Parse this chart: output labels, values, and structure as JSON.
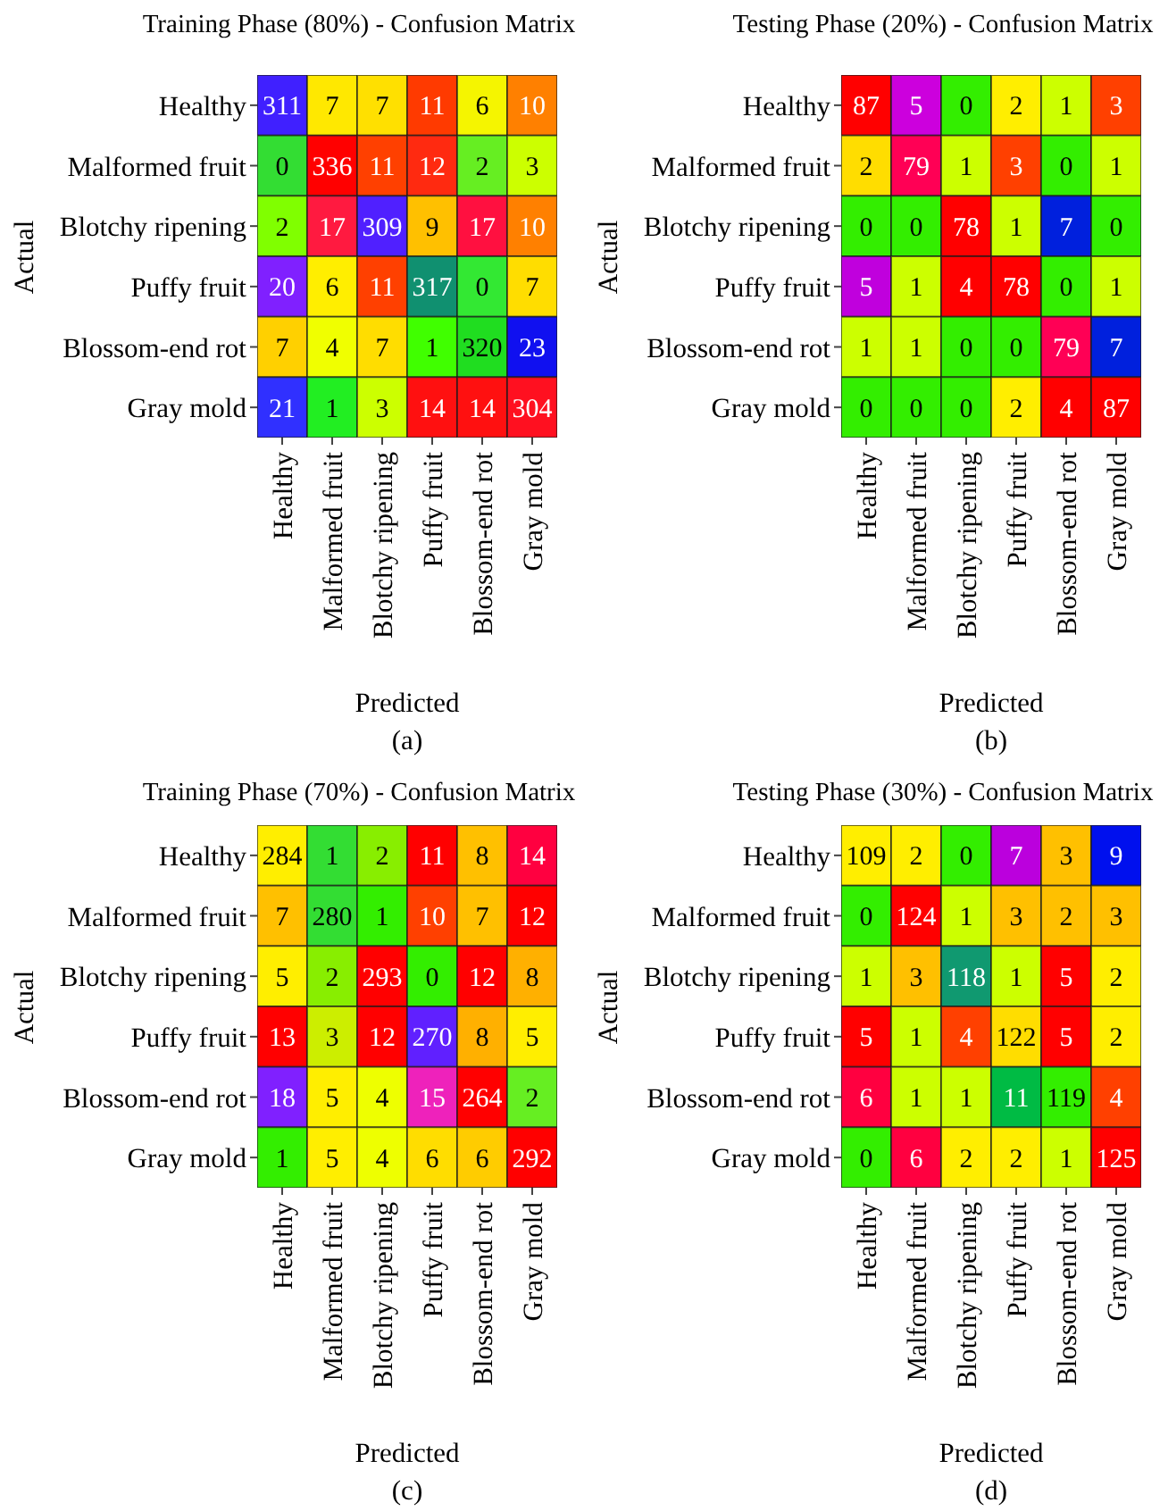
{
  "chart_data": [
    {
      "type": "heatmap",
      "title": "Training Phase (80%) - Confusion Matrix",
      "xlabel": "Predicted",
      "ylabel": "Actual",
      "annotations": [
        "(a)"
      ],
      "data_labels": true,
      "categories": [
        "Healthy",
        "Malformed fruit",
        "Blotchy ripening",
        "Puffy fruit",
        "Blossom-end rot",
        "Gray mold"
      ],
      "y_categories": [
        "Healthy",
        "Malformed fruit",
        "Blotchy ripening",
        "Puffy fruit",
        "Blossom-end rot",
        "Gray mold"
      ],
      "cells": [
        [
          311,
          7,
          7,
          11,
          6,
          10
        ],
        [
          0,
          336,
          11,
          12,
          2,
          3
        ],
        [
          2,
          17,
          309,
          9,
          17,
          10
        ],
        [
          20,
          6,
          11,
          317,
          0,
          7
        ],
        [
          7,
          4,
          7,
          1,
          320,
          23
        ],
        [
          21,
          1,
          3,
          14,
          14,
          304
        ]
      ],
      "colors": [
        [
          "#4020ff",
          "#ffe800",
          "#ffe000",
          "#ff3a00",
          "#f5f500",
          "#ff8000"
        ],
        [
          "#33dd33",
          "#ff0000",
          "#ff4000",
          "#ff2a10",
          "#66ee22",
          "#ccff00"
        ],
        [
          "#80ff00",
          "#ff1a40",
          "#5020ff",
          "#ffc000",
          "#ff1040",
          "#ff8000"
        ],
        [
          "#8020ff",
          "#ffee00",
          "#ff4000",
          "#109070",
          "#33e833",
          "#ffdd00"
        ],
        [
          "#ffd000",
          "#f0ff00",
          "#ffdd00",
          "#40ff00",
          "#20dd20",
          "#1010f0"
        ],
        [
          "#3030ff",
          "#22ee22",
          "#ccff00",
          "#ff1010",
          "#ff1010",
          "#ff1020"
        ]
      ]
    },
    {
      "type": "heatmap",
      "title": "Testing Phase (20%) - Confusion Matrix",
      "xlabel": "Predicted",
      "ylabel": "Actual",
      "annotations": [
        "(b)"
      ],
      "data_labels": true,
      "categories": [
        "Healthy",
        "Malformed fruit",
        "Blotchy ripening",
        "Puffy fruit",
        "Blossom-end rot",
        "Gray mold"
      ],
      "y_categories": [
        "Healthy",
        "Malformed fruit",
        "Blotchy ripening",
        "Puffy fruit",
        "Blossom-end rot",
        "Gray mold"
      ],
      "cells": [
        [
          87,
          5,
          0,
          2,
          1,
          3
        ],
        [
          2,
          79,
          1,
          3,
          0,
          1
        ],
        [
          0,
          0,
          78,
          1,
          7,
          0
        ],
        [
          5,
          1,
          4,
          78,
          0,
          1
        ],
        [
          1,
          1,
          0,
          0,
          79,
          7
        ],
        [
          0,
          0,
          0,
          2,
          4,
          87
        ]
      ],
      "colors": [
        [
          "#ff0000",
          "#cc00dd",
          "#33ee00",
          "#ffee00",
          "#ccff00",
          "#ff4000"
        ],
        [
          "#ffdd00",
          "#ff0055",
          "#ccff00",
          "#ff4000",
          "#33ee00",
          "#ccff00"
        ],
        [
          "#33ee00",
          "#33ee00",
          "#ff0000",
          "#ccff00",
          "#0020dd",
          "#33ee00"
        ],
        [
          "#c000dd",
          "#ccff00",
          "#ff0000",
          "#ff0000",
          "#33ee00",
          "#ccff00"
        ],
        [
          "#ccff00",
          "#ccff00",
          "#33ee00",
          "#33ee00",
          "#ff0055",
          "#0020dd"
        ],
        [
          "#33ee00",
          "#33ee00",
          "#33ee00",
          "#ffee00",
          "#ff0000",
          "#ff0000"
        ]
      ]
    },
    {
      "type": "heatmap",
      "title": "Training Phase (70%) - Confusion Matrix",
      "xlabel": "Predicted",
      "ylabel": "Actual",
      "annotations": [
        "(c)"
      ],
      "data_labels": true,
      "categories": [
        "Healthy",
        "Malformed fruit",
        "Blotchy ripening",
        "Puffy fruit",
        "Blossom-end rot",
        "Gray mold"
      ],
      "y_categories": [
        "Healthy",
        "Malformed fruit",
        "Blotchy ripening",
        "Puffy fruit",
        "Blossom-end rot",
        "Gray mold"
      ],
      "cells": [
        [
          284,
          1,
          2,
          11,
          8,
          14
        ],
        [
          7,
          280,
          1,
          10,
          7,
          12
        ],
        [
          5,
          2,
          293,
          0,
          12,
          8
        ],
        [
          13,
          3,
          12,
          270,
          8,
          5
        ],
        [
          18,
          5,
          4,
          15,
          264,
          2
        ],
        [
          1,
          5,
          4,
          6,
          6,
          292
        ]
      ],
      "colors": [
        [
          "#ffee00",
          "#33dd33",
          "#88ee00",
          "#ff0000",
          "#ffc000",
          "#ff0040"
        ],
        [
          "#ffc000",
          "#33dd33",
          "#33ee00",
          "#ff4000",
          "#ffc000",
          "#ff0000"
        ],
        [
          "#ffee00",
          "#88ee00",
          "#ff0000",
          "#33ee00",
          "#ff0000",
          "#ffb000"
        ],
        [
          "#ff0000",
          "#ccee00",
          "#ff0000",
          "#6020ff",
          "#ffb000",
          "#ffee00"
        ],
        [
          "#8020ff",
          "#ffee00",
          "#eeff00",
          "#ee22bb",
          "#ff0000",
          "#66ee22"
        ],
        [
          "#33ee00",
          "#ffee00",
          "#eeff00",
          "#ffdd00",
          "#ffcc00",
          "#ff0000"
        ]
      ]
    },
    {
      "type": "heatmap",
      "title": "Testing Phase (30%) - Confusion Matrix",
      "xlabel": "Predicted",
      "ylabel": "Actual",
      "annotations": [
        "(d)"
      ],
      "data_labels": true,
      "categories": [
        "Healthy",
        "Malformed fruit",
        "Blotchy ripening",
        "Puffy fruit",
        "Blossom-end rot",
        "Gray mold"
      ],
      "y_categories": [
        "Healthy",
        "Malformed fruit",
        "Blotchy ripening",
        "Puffy fruit",
        "Blossom-end rot",
        "Gray mold"
      ],
      "cells": [
        [
          109,
          2,
          0,
          7,
          3,
          9
        ],
        [
          0,
          124,
          1,
          3,
          2,
          3
        ],
        [
          1,
          3,
          118,
          1,
          5,
          2
        ],
        [
          5,
          1,
          4,
          122,
          5,
          2
        ],
        [
          6,
          1,
          1,
          11,
          119,
          4
        ],
        [
          0,
          6,
          2,
          2,
          1,
          125
        ]
      ],
      "colors": [
        [
          "#ffee00",
          "#ffee00",
          "#33ee00",
          "#bb00dd",
          "#ffc000",
          "#0010ee"
        ],
        [
          "#33ee00",
          "#ff0000",
          "#ccff00",
          "#ffc000",
          "#ffc000",
          "#ffc000"
        ],
        [
          "#ccff00",
          "#ffc000",
          "#109970",
          "#ccff00",
          "#ff0000",
          "#ffee00"
        ],
        [
          "#ff0000",
          "#ccff00",
          "#ff4000",
          "#ffdd00",
          "#ff0000",
          "#ffee00"
        ],
        [
          "#ff0040",
          "#ccff00",
          "#ccff00",
          "#00bb44",
          "#33ee00",
          "#ff4000"
        ],
        [
          "#33ee00",
          "#ff0040",
          "#ffee00",
          "#ffee00",
          "#ccff00",
          "#ff0000"
        ]
      ]
    }
  ]
}
